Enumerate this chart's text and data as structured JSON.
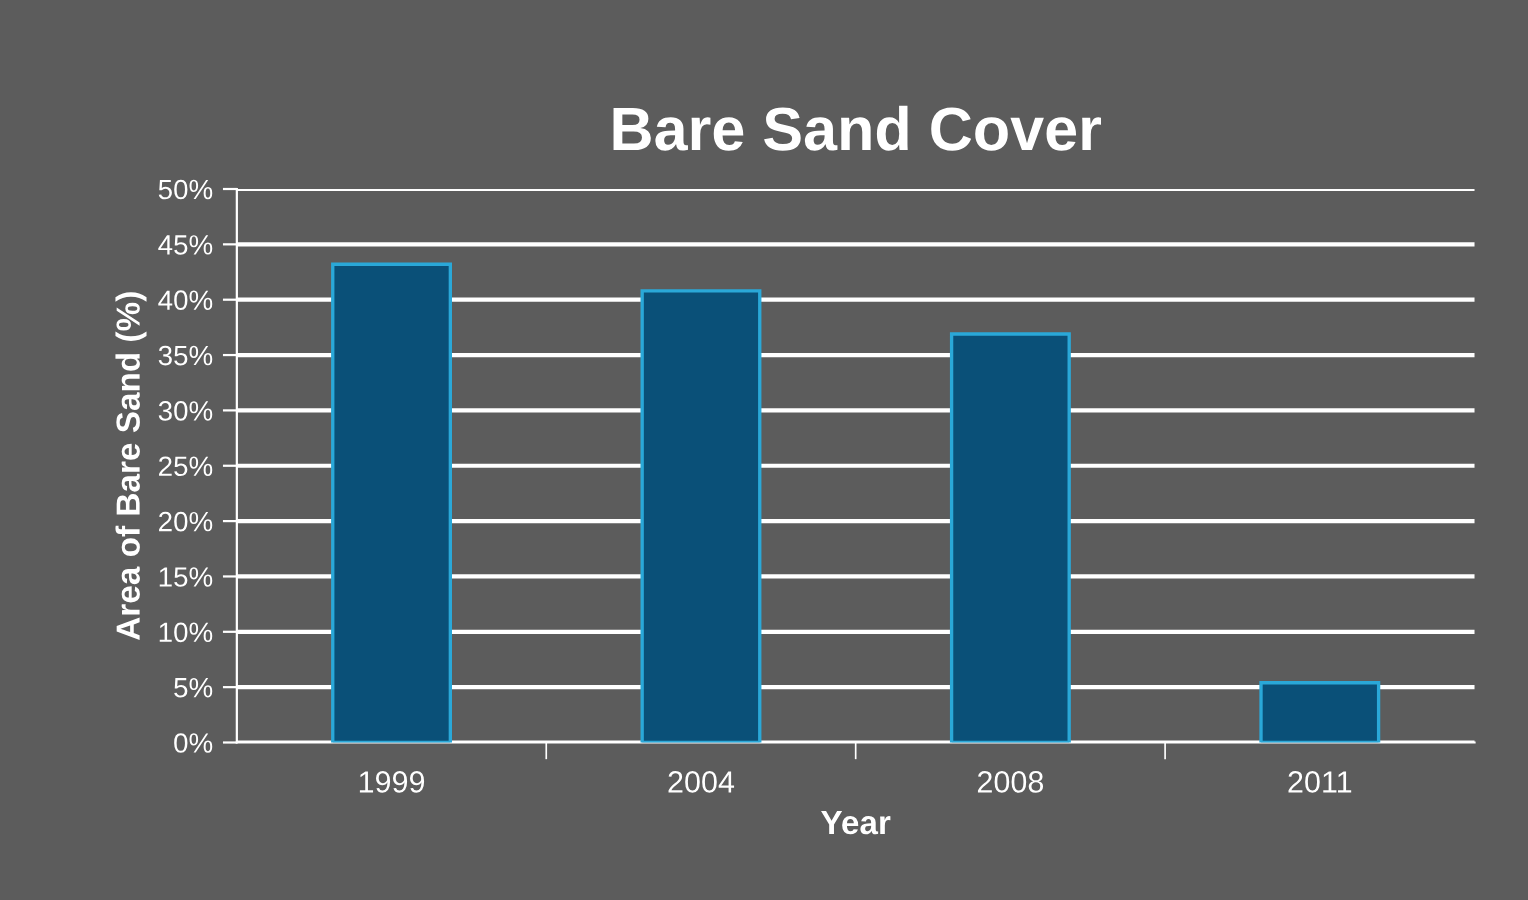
{
  "chart_data": {
    "type": "bar",
    "title": "Bare Sand Cover",
    "xlabel": "Year",
    "ylabel": "Area of Bare Sand (%)",
    "categories": [
      "1999",
      "2004",
      "2008",
      "2011"
    ],
    "values": [
      43.2,
      40.8,
      36.9,
      5.4
    ],
    "color": "#0a5078",
    "ylim": [
      0,
      50
    ],
    "yticks": [
      {
        "value": 0,
        "label": "0%"
      },
      {
        "value": 5,
        "label": "5%"
      },
      {
        "value": 10,
        "label": "10%"
      },
      {
        "value": 15,
        "label": "15%"
      },
      {
        "value": 20,
        "label": "20%"
      },
      {
        "value": 25,
        "label": "25%"
      },
      {
        "value": 30,
        "label": "30%"
      },
      {
        "value": 35,
        "label": "35%"
      },
      {
        "value": 40,
        "label": "40%"
      },
      {
        "value": 45,
        "label": "45%"
      },
      {
        "value": 50,
        "label": "50%"
      }
    ],
    "grid": "y",
    "legend": false
  }
}
